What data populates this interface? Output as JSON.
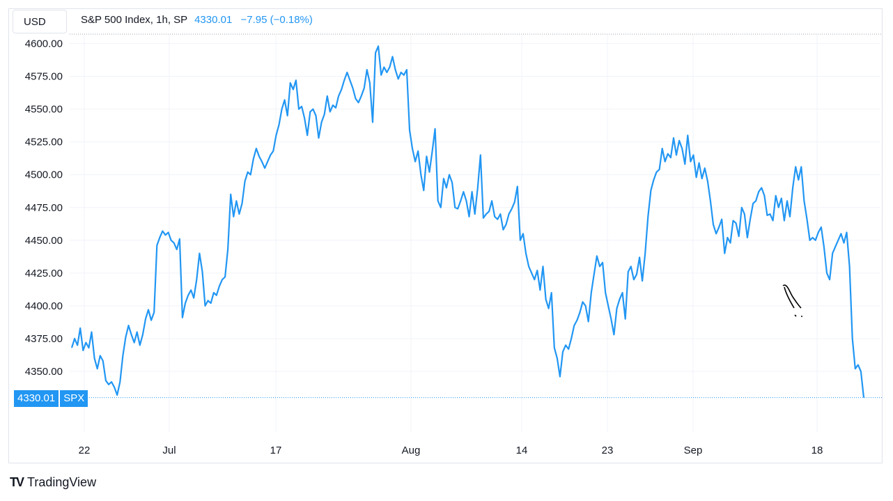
{
  "header": {
    "currency": "USD",
    "title": "S&P 500 Index, 1h, SP",
    "last_price": "4330.01",
    "change": "−7.95 (−0.18%)"
  },
  "last_label": {
    "price": "4330.01",
    "symbol": "SPX"
  },
  "brand": {
    "name": "TradingView",
    "logo_text": "TV"
  },
  "colors": {
    "line": "#2196f3",
    "grid": "#f0f3fa",
    "text": "#131722",
    "badge": "#2196f3"
  },
  "chart_data": {
    "type": "line",
    "title": "S&P 500 Index, 1h, SP",
    "ylim": [
      4325,
      4605
    ],
    "y_ticks": [
      "4600.00",
      "4575.00",
      "4550.00",
      "4525.00",
      "4500.00",
      "4475.00",
      "4450.00",
      "4425.00",
      "4400.00",
      "4375.00",
      "4350.00"
    ],
    "x_tick_labels": [
      "22",
      "Jul",
      "17",
      "Aug",
      "14",
      "23",
      "Sep",
      "18"
    ],
    "grid": true,
    "series": [
      {
        "values": [
          4368,
          4375,
          4370,
          4383,
          4366,
          4372,
          4368,
          4380,
          4360,
          4352,
          4362,
          4358,
          4343,
          4340,
          4342,
          4338,
          4332,
          4342,
          4362,
          4376,
          4385,
          4378,
          4372,
          4380,
          4370,
          4378,
          4390,
          4397,
          4389,
          4395,
          4446,
          4452,
          4457,
          4454,
          4456,
          4450,
          4448,
          4443,
          4451,
          4391,
          4402,
          4408,
          4412,
          4406,
          4420,
          4440,
          4426,
          4400,
          4404,
          4402,
          4410,
          4408,
          4415,
          4420,
          4422,
          4443,
          4485,
          4468,
          4480,
          4470,
          4478,
          4495,
          4502,
          4500,
          4512,
          4520,
          4514,
          4510,
          4505,
          4510,
          4515,
          4518,
          4530,
          4538,
          4550,
          4557,
          4545,
          4570,
          4565,
          4572,
          4550,
          4552,
          4543,
          4530,
          4548,
          4550,
          4545,
          4528,
          4540,
          4546,
          4560,
          4548,
          4553,
          4551,
          4560,
          4565,
          4572,
          4578,
          4572,
          4566,
          4558,
          4555,
          4560,
          4566,
          4580,
          4570,
          4540,
          4593,
          4598,
          4576,
          4582,
          4578,
          4582,
          4590,
          4580,
          4573,
          4578,
          4576,
          4580,
          4534,
          4520,
          4510,
          4518,
          4500,
          4488,
          4514,
          4502,
          4518,
          4535,
          4480,
          4475,
          4497,
          4490,
          4500,
          4494,
          4475,
          4474,
          4480,
          4487,
          4480,
          4468,
          4487,
          4470,
          4490,
          4515,
          4467,
          4470,
          4472,
          4480,
          4468,
          4466,
          4470,
          4458,
          4462,
          4470,
          4474,
          4479,
          4491,
          4450,
          4455,
          4440,
          4430,
          4425,
          4420,
          4427,
          4412,
          4430,
          4405,
          4398,
          4410,
          4368,
          4360,
          4346,
          4365,
          4370,
          4367,
          4375,
          4385,
          4389,
          4395,
          4403,
          4400,
          4388,
          4410,
          4424,
          4438,
          4430,
          4433,
          4410,
          4400,
          4390,
          4378,
          4398,
          4405,
          4410,
          4390,
          4426,
          4430,
          4420,
          4424,
          4437,
          4419,
          4440,
          4468,
          4488,
          4496,
          4502,
          4504,
          4520,
          4510,
          4516,
          4513,
          4528,
          4515,
          4526,
          4520,
          4508,
          4530,
          4510,
          4515,
          4498,
          4509,
          4497,
          4505,
          4495,
          4480,
          4462,
          4455,
          4460,
          4466,
          4440,
          4452,
          4448,
          4465,
          4463,
          4453,
          4475,
          4470,
          4452,
          4466,
          4478,
          4480,
          4487,
          4490,
          4484,
          4469,
          4470,
          4465,
          4484,
          4475,
          4482,
          4465,
          4480,
          4468,
          4490,
          4506,
          4496,
          4506,
          4480,
          4466,
          4450,
          4452,
          4450,
          4456,
          4460,
          4445,
          4425,
          4420,
          4440,
          4445,
          4450,
          4455,
          4448,
          4456,
          4430,
          4375,
          4352,
          4355,
          4350,
          4330
        ]
      }
    ]
  }
}
